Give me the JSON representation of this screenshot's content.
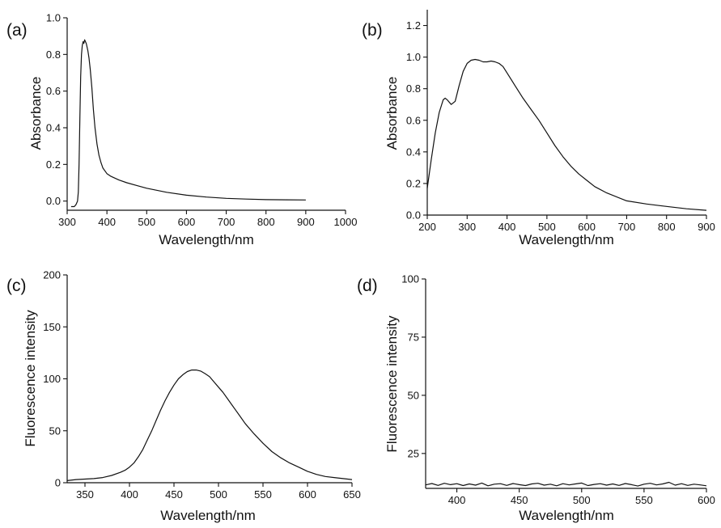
{
  "chart_data": [
    {
      "panel": "(a)",
      "type": "line",
      "xlabel": "Wavelength/nm",
      "ylabel": "Absorbance",
      "xlim": [
        300,
        1000
      ],
      "ylim": [
        -0.05,
        1.0
      ],
      "xticks": [
        300,
        400,
        500,
        600,
        700,
        800,
        900,
        1000
      ],
      "yticks": [
        0.0,
        0.2,
        0.4,
        0.6,
        0.8,
        1.0
      ],
      "tick_decimals": 1,
      "series": [
        {
          "x": [
            310,
            318,
            322,
            326,
            328,
            330,
            332,
            334,
            336,
            338,
            340,
            342,
            344,
            346,
            348,
            350,
            352,
            355,
            358,
            362,
            366,
            370,
            375,
            380,
            385,
            390,
            400,
            410,
            420,
            430,
            450,
            475,
            500,
            550,
            600,
            650,
            700,
            750,
            800,
            850,
            900
          ],
          "y": [
            -0.03,
            -0.03,
            -0.02,
            0.0,
            0.05,
            0.2,
            0.45,
            0.68,
            0.8,
            0.85,
            0.87,
            0.86,
            0.88,
            0.87,
            0.86,
            0.84,
            0.82,
            0.78,
            0.72,
            0.62,
            0.5,
            0.4,
            0.31,
            0.25,
            0.21,
            0.18,
            0.15,
            0.135,
            0.125,
            0.115,
            0.1,
            0.085,
            0.07,
            0.048,
            0.032,
            0.022,
            0.015,
            0.011,
            0.008,
            0.007,
            0.006
          ]
        }
      ]
    },
    {
      "panel": "(b)",
      "type": "line",
      "xlabel": "Wavelength/nm",
      "ylabel": "Absorbance",
      "xlim": [
        200,
        900
      ],
      "ylim": [
        0.0,
        1.3
      ],
      "xticks": [
        200,
        300,
        400,
        500,
        600,
        700,
        800,
        900
      ],
      "yticks": [
        0.0,
        0.2,
        0.4,
        0.6,
        0.8,
        1.0,
        1.2
      ],
      "tick_decimals": 1,
      "series": [
        {
          "x": [
            200,
            210,
            220,
            230,
            240,
            245,
            250,
            260,
            270,
            280,
            290,
            300,
            310,
            320,
            330,
            340,
            350,
            360,
            370,
            380,
            390,
            400,
            420,
            440,
            460,
            480,
            500,
            520,
            540,
            560,
            580,
            600,
            620,
            650,
            700,
            750,
            800,
            850,
            900
          ],
          "y": [
            0.17,
            0.35,
            0.52,
            0.65,
            0.73,
            0.74,
            0.73,
            0.7,
            0.72,
            0.82,
            0.91,
            0.96,
            0.98,
            0.985,
            0.98,
            0.97,
            0.97,
            0.975,
            0.97,
            0.96,
            0.94,
            0.9,
            0.82,
            0.74,
            0.67,
            0.6,
            0.52,
            0.44,
            0.37,
            0.31,
            0.26,
            0.22,
            0.18,
            0.14,
            0.09,
            0.07,
            0.055,
            0.04,
            0.03
          ]
        }
      ]
    },
    {
      "panel": "(c)",
      "type": "line",
      "xlabel": "Wavelength/nm",
      "ylabel": "Fluorescence intensity",
      "xlim": [
        330,
        650
      ],
      "ylim": [
        0,
        200
      ],
      "xticks": [
        350,
        400,
        450,
        500,
        550,
        600,
        650
      ],
      "yticks": [
        0,
        50,
        100,
        150,
        200
      ],
      "tick_decimals": 0,
      "series": [
        {
          "x": [
            330,
            340,
            350,
            360,
            370,
            380,
            390,
            395,
            400,
            405,
            410,
            415,
            420,
            425,
            430,
            435,
            440,
            445,
            450,
            455,
            460,
            465,
            470,
            475,
            480,
            485,
            490,
            495,
            500,
            505,
            510,
            515,
            520,
            525,
            530,
            540,
            550,
            560,
            570,
            580,
            590,
            600,
            610,
            620,
            630,
            640,
            650
          ],
          "y": [
            2,
            3,
            3.5,
            4,
            5,
            7,
            10,
            12,
            15,
            19,
            25,
            32,
            41,
            50,
            60,
            70,
            79,
            87,
            94,
            100,
            104,
            107,
            108.5,
            108.5,
            107.5,
            105,
            102,
            97,
            92,
            87,
            81,
            75,
            69,
            63,
            57,
            47,
            38,
            30,
            24,
            19,
            15,
            11,
            8,
            6,
            5,
            4,
            3
          ]
        }
      ]
    },
    {
      "panel": "(d)",
      "type": "line",
      "xlabel": "Wavelength/nm",
      "ylabel": "Fluorescence intensity",
      "xlim": [
        375,
        600
      ],
      "ylim": [
        10,
        100
      ],
      "xticks": [
        400,
        450,
        500,
        550,
        600
      ],
      "yticks": [
        25,
        50,
        75,
        100
      ],
      "tick_decimals": 0,
      "series": [
        {
          "x": [
            375,
            380,
            385,
            390,
            395,
            400,
            405,
            410,
            415,
            420,
            425,
            430,
            435,
            440,
            445,
            450,
            455,
            460,
            465,
            470,
            475,
            480,
            485,
            490,
            495,
            500,
            505,
            510,
            515,
            520,
            525,
            530,
            535,
            540,
            545,
            550,
            555,
            560,
            565,
            570,
            575,
            580,
            585,
            590,
            595,
            600
          ],
          "y": [
            11.5,
            12.1,
            11.3,
            12.2,
            11.6,
            12.0,
            11.2,
            11.9,
            11.4,
            12.3,
            11.1,
            11.8,
            12.0,
            11.3,
            12.1,
            11.6,
            11.2,
            11.9,
            12.2,
            11.4,
            11.8,
            11.1,
            12.0,
            11.5,
            11.9,
            12.3,
            11.2,
            11.7,
            12.0,
            11.4,
            11.9,
            11.3,
            12.1,
            11.6,
            11.0,
            11.8,
            12.2,
            11.5,
            11.9,
            12.6,
            11.4,
            12.0,
            11.3,
            11.8,
            11.5,
            11.1
          ]
        }
      ]
    }
  ]
}
